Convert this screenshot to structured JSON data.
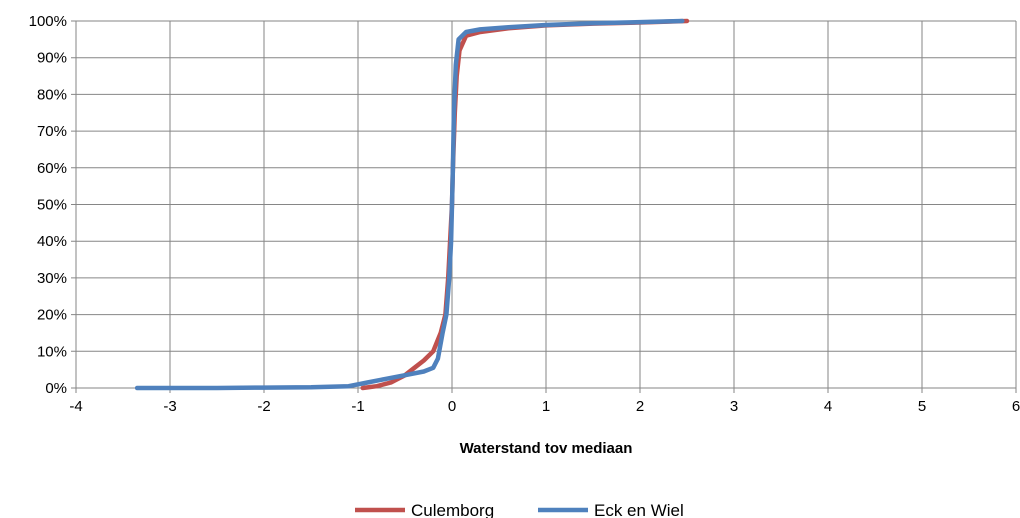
{
  "chart_data": {
    "type": "line",
    "title": "",
    "xlabel": "Waterstand tov mediaan",
    "ylabel": "",
    "xlim": [
      -4,
      6
    ],
    "ylim": [
      0,
      100
    ],
    "x_ticks": [
      "-4",
      "-3",
      "-2",
      "-1",
      "0",
      "1",
      "2",
      "3",
      "4",
      "5",
      "6"
    ],
    "y_ticks": [
      "0%",
      "10%",
      "20%",
      "30%",
      "40%",
      "50%",
      "60%",
      "70%",
      "80%",
      "90%",
      "100%"
    ],
    "grid": true,
    "legend_position": "bottom",
    "series": [
      {
        "name": "Culemborg",
        "color": "#C0504D",
        "points": [
          [
            -0.95,
            0
          ],
          [
            -0.8,
            0.5
          ],
          [
            -0.65,
            1.5
          ],
          [
            -0.5,
            3.5
          ],
          [
            -0.4,
            5.5
          ],
          [
            -0.3,
            7.5
          ],
          [
            -0.2,
            10
          ],
          [
            -0.12,
            15
          ],
          [
            -0.07,
            20
          ],
          [
            -0.04,
            30
          ],
          [
            -0.02,
            40
          ],
          [
            0.0,
            50
          ],
          [
            0.01,
            60
          ],
          [
            0.03,
            75
          ],
          [
            0.05,
            85
          ],
          [
            0.08,
            92
          ],
          [
            0.15,
            96
          ],
          [
            0.3,
            97
          ],
          [
            0.6,
            98
          ],
          [
            1.0,
            98.8
          ],
          [
            1.5,
            99.3
          ],
          [
            2.0,
            99.6
          ],
          [
            2.5,
            100
          ]
        ]
      },
      {
        "name": "Eck en Wiel",
        "color": "#4F81BD",
        "points": [
          [
            -3.35,
            0
          ],
          [
            -2.5,
            0
          ],
          [
            -2.0,
            0.1
          ],
          [
            -1.5,
            0.2
          ],
          [
            -1.1,
            0.5
          ],
          [
            -0.9,
            1.5
          ],
          [
            -0.7,
            2.5
          ],
          [
            -0.5,
            3.5
          ],
          [
            -0.3,
            4.5
          ],
          [
            -0.2,
            5.5
          ],
          [
            -0.15,
            8
          ],
          [
            -0.1,
            15
          ],
          [
            -0.06,
            20
          ],
          [
            -0.03,
            30
          ],
          [
            -0.01,
            40
          ],
          [
            0.0,
            50
          ],
          [
            0.01,
            60
          ],
          [
            0.02,
            75
          ],
          [
            0.04,
            88
          ],
          [
            0.07,
            95
          ],
          [
            0.15,
            97
          ],
          [
            0.3,
            97.7
          ],
          [
            0.6,
            98.3
          ],
          [
            1.0,
            98.9
          ],
          [
            1.5,
            99.4
          ],
          [
            2.0,
            99.7
          ],
          [
            2.45,
            100
          ]
        ]
      }
    ]
  }
}
